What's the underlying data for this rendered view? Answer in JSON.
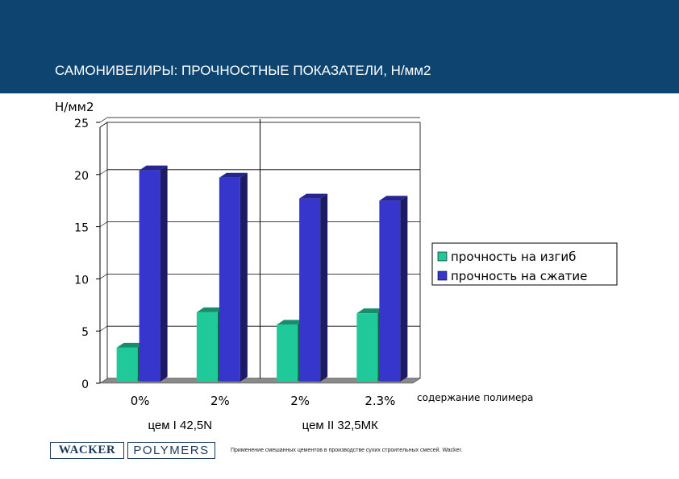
{
  "header": {
    "title": "САМОНИВЕЛИРЫ: ПРОЧНОСТНЫЕ ПОКАЗАТЕЛИ, Н/мм2",
    "background": "#0e4470"
  },
  "chart_data": {
    "type": "bar",
    "style": "3d",
    "ylabel": "Н/мм2",
    "xlabel": "содержание полимера",
    "ylim": [
      0,
      25
    ],
    "yticks": [
      "0",
      "5",
      "10",
      "15",
      "20",
      "25"
    ],
    "grid": true,
    "legend_position": "right",
    "categories": [
      "0%",
      "2%",
      "2%",
      "2.3%"
    ],
    "groups": [
      {
        "label": "цем I 42,5N",
        "categories": [
          "0%",
          "2%"
        ]
      },
      {
        "label": "цем II 32,5МК",
        "categories": [
          "2%",
          "2.3%"
        ]
      }
    ],
    "series": [
      {
        "name": "прочность на изгиб",
        "values": [
          3.4,
          6.8,
          5.6,
          6.7
        ],
        "color": "#1fc99a"
      },
      {
        "name": "прочность на сжатие",
        "values": [
          20.4,
          19.7,
          17.7,
          17.5
        ],
        "color": "#3636cc"
      }
    ]
  },
  "footer": {
    "logo_left": "WACKER",
    "logo_right": "POLYMERS",
    "note": "Применение смешанных цементов в производстве сухих строительных смесей. Wacker."
  }
}
